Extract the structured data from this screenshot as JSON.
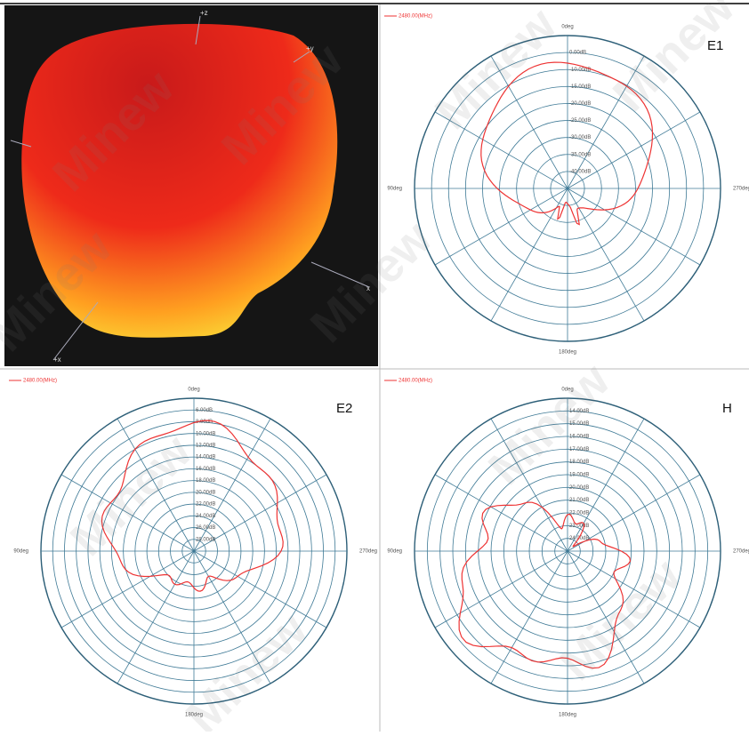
{
  "model3d": {
    "axis_labels": [
      "+z",
      "+y",
      "+x",
      "x"
    ]
  },
  "panels": [
    {
      "label": "E1",
      "legend": "2480.00(MHz)",
      "angle_top": "0deg",
      "angle_left": "90deg",
      "angle_right": "270deg",
      "angle_bottom": "180deg",
      "rings": [
        "0.00dB",
        "-10.00dB",
        "-15.00dB",
        "-20.00dB",
        "-25.00dB",
        "-30.00dB",
        "-35.00dB",
        "-40.00dB"
      ]
    },
    {
      "label": "E2",
      "legend": "2480.00(MHz)",
      "angle_top": "0deg",
      "angle_left": "90deg",
      "angle_right": "270deg",
      "angle_bottom": "180deg",
      "rings": [
        "6.00dB",
        "8.00dB",
        "10.00dB",
        "12.00dB",
        "14.00dB",
        "16.00dB",
        "18.00dB",
        "20.00dB",
        "22.00dB",
        "24.00dB",
        "26.00dB",
        "28.00dB"
      ]
    },
    {
      "label": "H",
      "legend": "2480.00(MHz)",
      "angle_top": "0deg",
      "angle_left": "90deg",
      "angle_right": "270deg",
      "angle_bottom": "180deg",
      "rings": [
        "14.00dB",
        "15.00dB",
        "16.00dB",
        "17.00dB",
        "18.00dB",
        "19.00dB",
        "20.00dB",
        "21.00dB",
        "22.00dB",
        "23.00dB",
        "24.00dB"
      ]
    }
  ],
  "watermark": "Minew"
}
